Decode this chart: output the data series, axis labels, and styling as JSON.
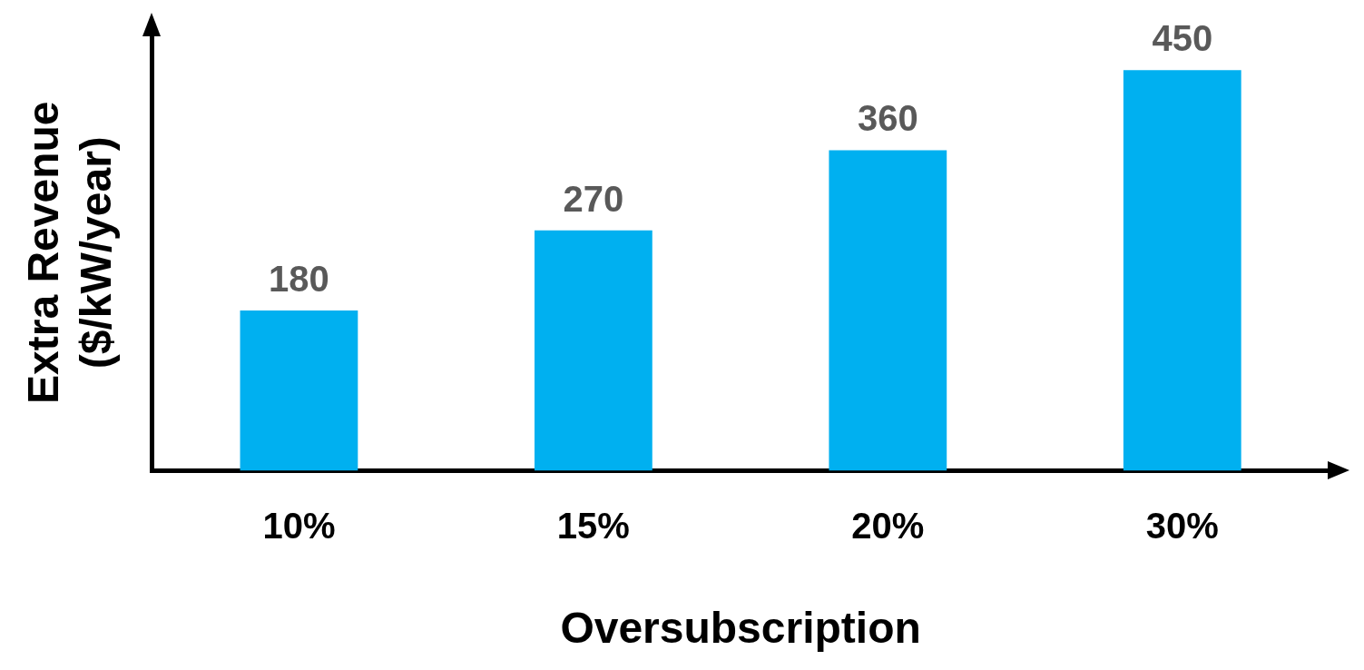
{
  "chart_data": {
    "type": "bar",
    "xlabel": "Oversubscription",
    "ylabel": "Extra Revenue\n($/kW/year)",
    "categories": [
      "10%",
      "15%",
      "20%",
      "30%"
    ],
    "values": [
      180,
      270,
      360,
      450
    ],
    "color": "#00b0f0",
    "ylim": [
      0,
      490
    ],
    "data_labels": true,
    "grid": false,
    "legend": false,
    "tick_labels": "x"
  }
}
